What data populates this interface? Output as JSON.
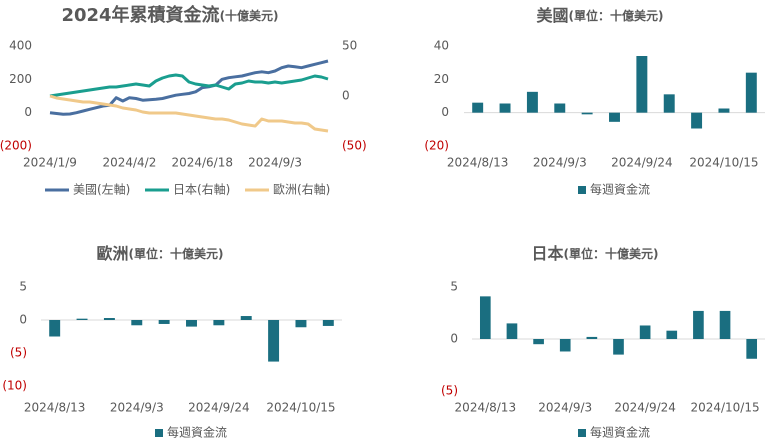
{
  "chart_data": [
    {
      "type": "line",
      "title": "2024年累積資金流",
      "unit": "(十億美元)",
      "categories": [
        "2024/1/9",
        null,
        null,
        null,
        null,
        null,
        null,
        null,
        null,
        null,
        null,
        null,
        "2024/4/2",
        null,
        null,
        null,
        null,
        null,
        null,
        null,
        null,
        null,
        null,
        "2024/6/18",
        null,
        null,
        null,
        null,
        null,
        null,
        null,
        null,
        null,
        null,
        "2024/9/3",
        null,
        null,
        null,
        null,
        null,
        null,
        null,
        null
      ],
      "ylim": [
        -200,
        400
      ],
      "yticks": [
        400,
        200,
        0,
        {
          "value": -200,
          "label": "(200)"
        }
      ],
      "y2lim": [
        -50,
        50
      ],
      "y2ticks": [
        50,
        0,
        {
          "value": -50,
          "label": "(50)"
        }
      ],
      "grid": false,
      "series": [
        {
          "name": "美國(左軸)",
          "color": "#4a6fa0",
          "values": [
            0,
            -5,
            -10,
            -8,
            0,
            10,
            20,
            30,
            40,
            45,
            90,
            70,
            90,
            85,
            75,
            78,
            80,
            85,
            95,
            105,
            110,
            115,
            125,
            150,
            155,
            165,
            200,
            210,
            215,
            220,
            230,
            240,
            245,
            240,
            250,
            270,
            280,
            275,
            270,
            280,
            290,
            300,
            310
          ]
        },
        {
          "name": "日本(右軸)",
          "color": "#1a9e8f",
          "axis": "y2",
          "values": [
            0,
            1,
            2,
            3,
            4,
            5,
            6,
            7,
            8,
            9,
            9,
            10,
            11,
            12,
            11,
            10,
            15,
            18,
            20,
            21,
            20,
            14,
            12,
            11,
            10,
            11,
            9,
            7,
            12,
            13,
            15,
            14,
            14,
            13,
            14,
            13,
            14,
            15,
            16,
            18,
            20,
            19,
            17
          ]
        },
        {
          "name": "歐洲(右軸)",
          "color": "#f0c98a",
          "axis": "y2",
          "values": [
            0,
            -2,
            -3,
            -4,
            -5,
            -6,
            -6,
            -7,
            -8,
            -9,
            -10,
            -12,
            -13,
            -14,
            -16,
            -17,
            -17,
            -17,
            -17,
            -17,
            -18,
            -19,
            -20,
            -21,
            -22,
            -23,
            -23,
            -24,
            -26,
            -28,
            -29,
            -30,
            -23,
            -25,
            -25,
            -25,
            -26,
            -27,
            -27,
            -28,
            -33,
            -34,
            -35
          ]
        }
      ],
      "legend": "bottom"
    },
    {
      "type": "bar",
      "title": "美國",
      "unit": "(單位：十億美元)",
      "categories": [
        "2024/8/13",
        null,
        null,
        "2024/9/3",
        null,
        null,
        "2024/9/24",
        null,
        null,
        "2024/10/15",
        null
      ],
      "ylim": [
        -20,
        40
      ],
      "yticks": [
        40,
        20,
        0,
        {
          "value": -20,
          "label": "(20)"
        }
      ],
      "grid": false,
      "series": [
        {
          "name": "每週資金流",
          "color": "#1a6e80",
          "values": [
            6,
            5.5,
            12.5,
            5.5,
            -1,
            -5.5,
            34,
            11,
            -9.5,
            2.5,
            24
          ]
        }
      ],
      "legend": "bottom"
    },
    {
      "type": "bar",
      "title": "歐洲",
      "unit": "(單位：十億美元)",
      "categories": [
        "2024/8/13",
        null,
        null,
        "2024/9/3",
        null,
        null,
        "2024/9/24",
        null,
        null,
        "2024/10/15",
        null
      ],
      "ylim": [
        -10,
        5
      ],
      "yticks": [
        5,
        0,
        {
          "value": -5,
          "label": "(5)"
        },
        {
          "value": -10,
          "label": "(10)"
        }
      ],
      "grid": false,
      "series": [
        {
          "name": "每週資金流",
          "color": "#1a6e80",
          "values": [
            -2.5,
            0.2,
            0.3,
            -0.8,
            -0.6,
            -1,
            -0.8,
            0.6,
            -6.3,
            -1.1,
            -0.9
          ]
        }
      ],
      "legend": "bottom"
    },
    {
      "type": "bar",
      "title": "日本",
      "unit": "(單位：十億美元)",
      "categories": [
        "2024/8/13",
        null,
        null,
        "2024/9/3",
        null,
        null,
        "2024/9/24",
        null,
        null,
        "2024/10/15",
        null
      ],
      "ylim": [
        -5,
        5
      ],
      "yticks": [
        5,
        0,
        {
          "value": -5,
          "label": "(5)"
        }
      ],
      "grid": false,
      "series": [
        {
          "name": "每週資金流",
          "color": "#1a6e80",
          "values": [
            4.1,
            1.5,
            -0.5,
            -1.2,
            0.2,
            -1.5,
            1.3,
            0.8,
            2.7,
            2.7,
            -1.9
          ]
        }
      ],
      "legend": "bottom"
    }
  ]
}
